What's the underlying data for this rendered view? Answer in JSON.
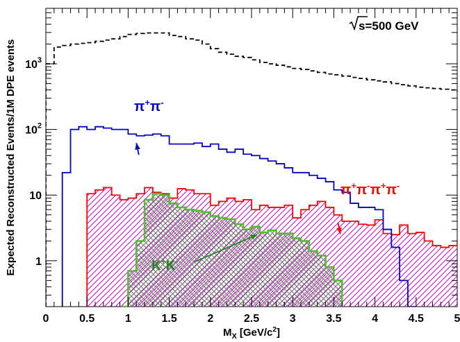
{
  "chart_data": {
    "type": "histogram",
    "title": "",
    "xlabel": "M",
    "xlabel_sub": "X",
    "xlabel_units": "[GeV/c",
    "xlabel_units_sup": "2",
    "xlabel_units_end": "]",
    "ylabel": "Expected Reconstructed Events/1M DPE events",
    "xlim": [
      0,
      5
    ],
    "ylim": [
      0.2,
      7000
    ],
    "yscale": "log",
    "grid": false,
    "bin_width": 0.1,
    "x_ticks": [
      "0",
      "0.5",
      "1",
      "1.5",
      "2",
      "2.5",
      "3",
      "3.5",
      "4",
      "4.5",
      "5"
    ],
    "y_ticks": [
      {
        "base": "1",
        "exp": "",
        "value": 1
      },
      {
        "base": "10",
        "exp": "",
        "value": 10
      },
      {
        "base": "10",
        "exp": "2",
        "value": 100
      },
      {
        "base": "10",
        "exp": "3",
        "value": 1000
      }
    ],
    "energy_label": {
      "root": "s",
      "text": "=500 GeV"
    },
    "series": [
      {
        "color": "#000000",
        "style": "dashed",
        "fill": "none",
        "x_start": 0.0,
        "values": [
          1000,
          1800,
          1900,
          2000,
          2050,
          2100,
          2200,
          2300,
          2400,
          2600,
          2800,
          2900,
          2950,
          2950,
          2950,
          2700,
          2600,
          2400,
          2300,
          2000,
          1700,
          1500,
          1400,
          1300,
          1250,
          1150,
          1050,
          1000,
          950,
          900,
          850,
          820,
          780,
          740,
          700,
          680,
          650,
          620,
          600,
          570,
          550,
          530,
          500,
          480,
          460,
          440,
          430,
          420,
          410,
          400,
          380,
          380,
          360,
          350,
          340,
          330,
          320,
          310,
          310,
          300,
          300,
          290,
          290,
          280,
          280,
          270,
          270,
          260,
          260,
          260,
          250,
          250,
          240,
          240,
          240,
          230,
          230,
          220,
          220,
          220,
          210,
          210,
          210,
          210,
          200,
          200,
          200,
          200,
          200,
          190,
          190,
          190,
          190,
          190,
          190,
          180,
          180,
          190,
          180,
          170
        ]
      },
      {
        "color": "#0000cc",
        "style": "solid",
        "fill": "none",
        "x_start": 0.2,
        "values": [
          22,
          100,
          110,
          100,
          110,
          105,
          100,
          100,
          85,
          80,
          82,
          85,
          80,
          60,
          60,
          60,
          62,
          55,
          60,
          50,
          45,
          50,
          42,
          40,
          36,
          33,
          30,
          26,
          22,
          22,
          20,
          18,
          16,
          12,
          11,
          7.5,
          6.5,
          6.5,
          6,
          3,
          1.6,
          0.5,
          0.2
        ]
      },
      {
        "color": "#ff0000",
        "style": "solid",
        "fill": "hatch",
        "fill_color": "#cc00cc",
        "x_start": 0.5,
        "values": [
          10.5,
          12,
          13,
          10,
          8.5,
          9,
          10.5,
          13,
          11,
          10.5,
          9,
          12.5,
          12,
          10.5,
          10.5,
          7,
          8,
          9,
          8,
          8.5,
          6,
          7,
          6.5,
          6.5,
          7,
          4.5,
          6,
          7,
          8,
          6.5,
          5,
          4,
          4,
          3.6,
          3.5,
          4.2,
          2.6,
          2.5,
          3.5,
          2.6,
          2.7,
          2.0,
          1.7,
          1.6,
          1.7,
          2.0,
          1.5,
          0.8,
          0.8,
          1.5,
          1.3,
          0.5,
          0.2,
          0.8,
          0.8,
          0.6,
          0.5,
          0.2,
          0.5,
          0.3,
          0.3,
          0.3,
          0.3,
          0.5,
          0.5
        ]
      },
      {
        "color": "#55bb33",
        "style": "solid",
        "fill": "crosshatch",
        "fill_color": "#777777",
        "x_start": 0.9,
        "values": [
          0.2,
          0.7,
          2.0,
          8.5,
          10.5,
          10.0,
          7.5,
          6.5,
          6.0,
          5.8,
          5.5,
          4.8,
          4.5,
          4.3,
          3.6,
          3.0,
          3.3,
          2.7,
          2.9,
          2.6,
          2.6,
          2.2,
          2.0,
          1.4,
          1.2,
          0.8,
          0.5
        ]
      }
    ],
    "annotations": [
      {
        "id": "pipi",
        "base": "π",
        "sup1": "+",
        "mid": "π",
        "sup2": "-",
        "color": "#0000cc",
        "tail": [
          1.13,
          41
        ],
        "head": [
          1.1,
          62
        ]
      },
      {
        "id": "pipipipi",
        "base": "π",
        "sup1": "+",
        "mid": "π",
        "sup2": "-",
        "base2": "π",
        "sup3": "+",
        "mid2": "π",
        "sup4": "-",
        "color": "#ff0000",
        "tail": [
          3.55,
          3.8
        ],
        "head": [
          3.58,
          2.55
        ]
      },
      {
        "id": "kk",
        "base": "K",
        "sup1": "+",
        "mid": "K",
        "sup2": "-",
        "color": "#228822",
        "tail": [
          1.8,
          0.95
        ],
        "head": [
          2.57,
          2.5
        ]
      }
    ]
  }
}
